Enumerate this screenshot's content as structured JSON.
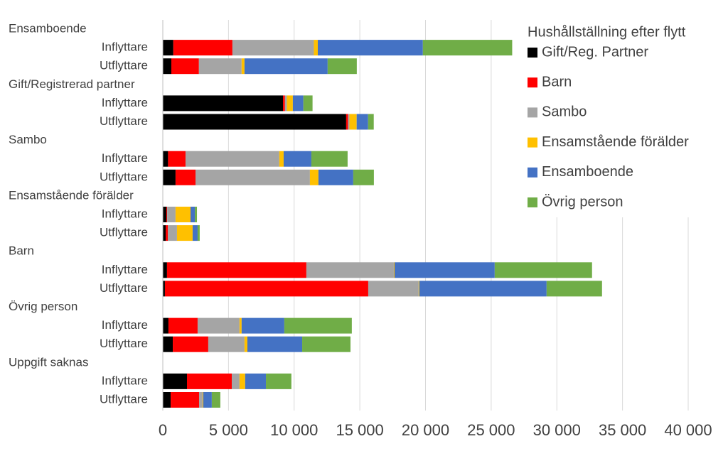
{
  "chart_data": {
    "type": "stacked-barh",
    "groups": [
      "Ensamboende",
      "Gift/Registrerad partner",
      "Sambo",
      "Ensamstående förälder",
      "Barn",
      "Övrig person",
      "Uppgift saknas"
    ],
    "categories": [
      "Inflyttare",
      "Utflyttare",
      "Inflyttare",
      "Utflyttare",
      "Inflyttare",
      "Utflyttare",
      "Inflyttare",
      "Utflyttare",
      "Inflyttare",
      "Utflyttare",
      "Inflyttare",
      "Utflyttare",
      "Inflyttare",
      "Utflyttare"
    ],
    "legend_title": "Hushållställning efter flytt",
    "series": [
      {
        "name": "Gift/Reg. Partner",
        "color": "#000000",
        "values": [
          800,
          650,
          9150,
          13960,
          400,
          970,
          270,
          220,
          320,
          160,
          430,
          760,
          1840,
          600
        ]
      },
      {
        "name": "Barn",
        "color": "#ff0000",
        "values": [
          4500,
          2100,
          150,
          150,
          1330,
          1520,
          60,
          160,
          10610,
          15480,
          2220,
          2700,
          3410,
          2160
        ]
      },
      {
        "name": "Sambo",
        "color": "#a5a5a5",
        "values": [
          6200,
          3250,
          150,
          100,
          7140,
          8710,
          640,
          700,
          6660,
          3840,
          3190,
          2760,
          590,
          270
        ]
      },
      {
        "name": "Ensamstående förälder",
        "color": "#ffc000",
        "values": [
          300,
          220,
          450,
          550,
          330,
          650,
          1140,
          1190,
          50,
          50,
          160,
          220,
          430,
          50
        ]
      },
      {
        "name": "Ensamboende",
        "color": "#4472c4",
        "values": [
          8000,
          6330,
          800,
          870,
          2110,
          2650,
          330,
          380,
          7630,
          9690,
          3250,
          4170,
          1580,
          650
        ]
      },
      {
        "name": "Övrig person",
        "color": "#70ad47",
        "values": [
          6800,
          2220,
          700,
          430,
          2760,
          1570,
          160,
          160,
          7410,
          4220,
          5140,
          3680,
          1940,
          650
        ]
      }
    ],
    "xlim": [
      0,
      40000
    ],
    "xticks": [
      0,
      {
        "value": 5000,
        "label": "5 000"
      },
      {
        "value": 10000,
        "label": "10 000"
      },
      {
        "value": 15000,
        "label": "15 000"
      },
      {
        "value": 20000,
        "label": "20 000"
      },
      {
        "value": 25000,
        "label": "25 000"
      },
      {
        "value": 30000,
        "label": "30 000"
      },
      {
        "value": 35000,
        "label": "35 000"
      },
      {
        "value": 40000,
        "label": "40 000"
      }
    ],
    "grid": true,
    "legend": "right"
  }
}
